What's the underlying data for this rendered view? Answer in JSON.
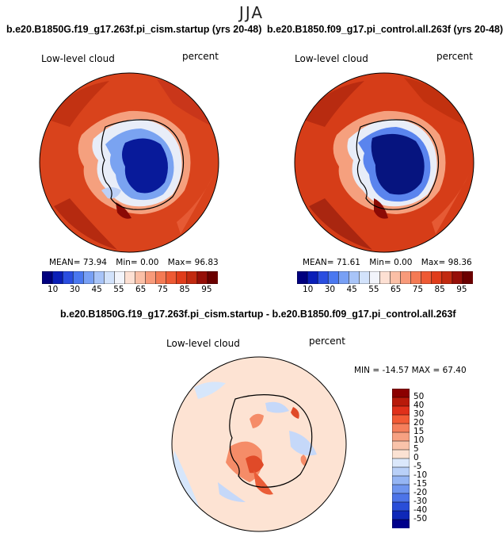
{
  "season": "JJA",
  "panels": [
    {
      "title": "b.e20.B1850G.f19_g17.263f.pi_cism.startup (yrs 20-48)",
      "variable": "Low-level cloud",
      "units": "percent",
      "mean": "73.94",
      "min": "0.00",
      "max": "96.83",
      "mean_label": "MEAN=",
      "min_label": "Min=",
      "max_label": "Max="
    },
    {
      "title": "b.e20.B1850.f09_g17.pi_control.all.263f (yrs 20-48)",
      "variable": "Low-level cloud",
      "units": "percent",
      "mean": "71.61",
      "min": "0.00",
      "max": "98.36",
      "mean_label": "MEAN=",
      "min_label": "Min=",
      "max_label": "Max="
    }
  ],
  "colorbar_main": {
    "ticks": [
      "10",
      "30",
      "45",
      "55",
      "65",
      "75",
      "85",
      "95"
    ],
    "colors": [
      "#00007f",
      "#0a1fb8",
      "#2a4ee0",
      "#4a78f0",
      "#78a0f5",
      "#a8c4f8",
      "#d2e2fb",
      "#f2f4fb",
      "#fde0d3",
      "#fbbfa6",
      "#f89a7a",
      "#f47a54",
      "#ee5a34",
      "#e03c1a",
      "#c22a10",
      "#960f08",
      "#6b0000"
    ]
  },
  "diff_panel": {
    "title": "b.e20.B1850G.f19_g17.263f.pi_cism.startup - b.e20.B1850.f09_g17.pi_control.all.263f",
    "variable": "Low-level cloud",
    "units": "percent",
    "stats": "MIN = -14.57  MAX =  67.40"
  },
  "colorbar_diff": {
    "ticks": [
      "50",
      "40",
      "30",
      "20",
      "15",
      "10",
      "5",
      "0",
      "-5",
      "-10",
      "-15",
      "-20",
      "-30",
      "-40",
      "-50"
    ],
    "colors": [
      "#8b0000",
      "#b81a0a",
      "#e0301a",
      "#f25a35",
      "#f57f5c",
      "#f7a182",
      "#f9c3aa",
      "#fbe2d3",
      "#dbe8fb",
      "#b9d0f8",
      "#95b5f4",
      "#6f95ef",
      "#4d74e8",
      "#2a4ed8",
      "#0f28b8",
      "#00008b"
    ]
  }
}
